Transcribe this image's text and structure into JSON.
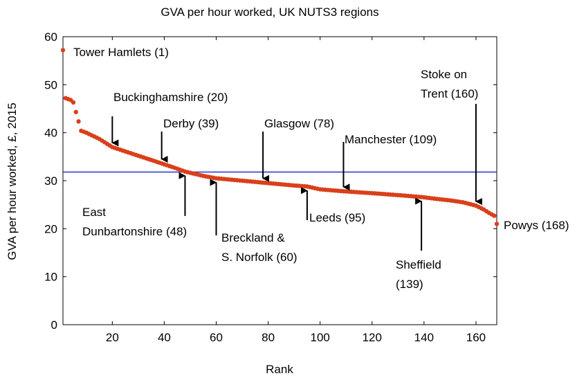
{
  "chart_data": {
    "type": "scatter",
    "title": "GVA per hour worked, UK NUTS3 regions",
    "xlabel": "Rank",
    "ylabel": "GVA per hour worked, £, 2015",
    "xlim": [
      1,
      168
    ],
    "ylim": [
      0,
      60
    ],
    "x_ticks": [
      20,
      40,
      60,
      80,
      100,
      120,
      140,
      160
    ],
    "y_ticks": [
      0,
      10,
      20,
      30,
      40,
      50,
      60
    ],
    "grid": false,
    "reference_line": {
      "y": 31.8,
      "color": "#2233cc"
    },
    "point_color": "#d9401a",
    "knots": [
      [
        1,
        57.2
      ],
      [
        2,
        47.2
      ],
      [
        3,
        47.0
      ],
      [
        4,
        46.8
      ],
      [
        5,
        46.3
      ],
      [
        6,
        44.3
      ],
      [
        8,
        40.4
      ],
      [
        10,
        40.0
      ],
      [
        15,
        38.7
      ],
      [
        20,
        37.0
      ],
      [
        30,
        35.2
      ],
      [
        39,
        33.6
      ],
      [
        45,
        32.5
      ],
      [
        48,
        31.9
      ],
      [
        55,
        31.0
      ],
      [
        60,
        30.5
      ],
      [
        70,
        30.0
      ],
      [
        78,
        29.6
      ],
      [
        90,
        29.0
      ],
      [
        95,
        28.8
      ],
      [
        100,
        28.2
      ],
      [
        109,
        27.8
      ],
      [
        120,
        27.4
      ],
      [
        130,
        27.0
      ],
      [
        139,
        26.6
      ],
      [
        145,
        26.2
      ],
      [
        150,
        25.9
      ],
      [
        155,
        25.5
      ],
      [
        160,
        24.8
      ],
      [
        163,
        24.0
      ],
      [
        165,
        23.3
      ],
      [
        167,
        22.7
      ],
      [
        168,
        21.0
      ]
    ],
    "annotations": [
      {
        "lines": [
          "Tower Hamlets (1)"
        ]
      },
      {
        "lines": [
          "Buckinghamshire (20)"
        ]
      },
      {
        "lines": [
          "Derby (39)"
        ]
      },
      {
        "lines": [
          "Glasgow (78)"
        ]
      },
      {
        "lines": [
          "Manchester (109)"
        ]
      },
      {
        "lines": [
          "Stoke on",
          "Trent (160)"
        ]
      },
      {
        "lines": [
          "East",
          "Dunbartonshire (48)"
        ]
      },
      {
        "lines": [
          "Breckland &",
          "S. Norfolk (60)"
        ]
      },
      {
        "lines": [
          "Leeds (95)"
        ]
      },
      {
        "lines": [
          "Sheffield",
          "(139)"
        ]
      },
      {
        "lines": [
          "Powys (168)"
        ]
      }
    ]
  }
}
